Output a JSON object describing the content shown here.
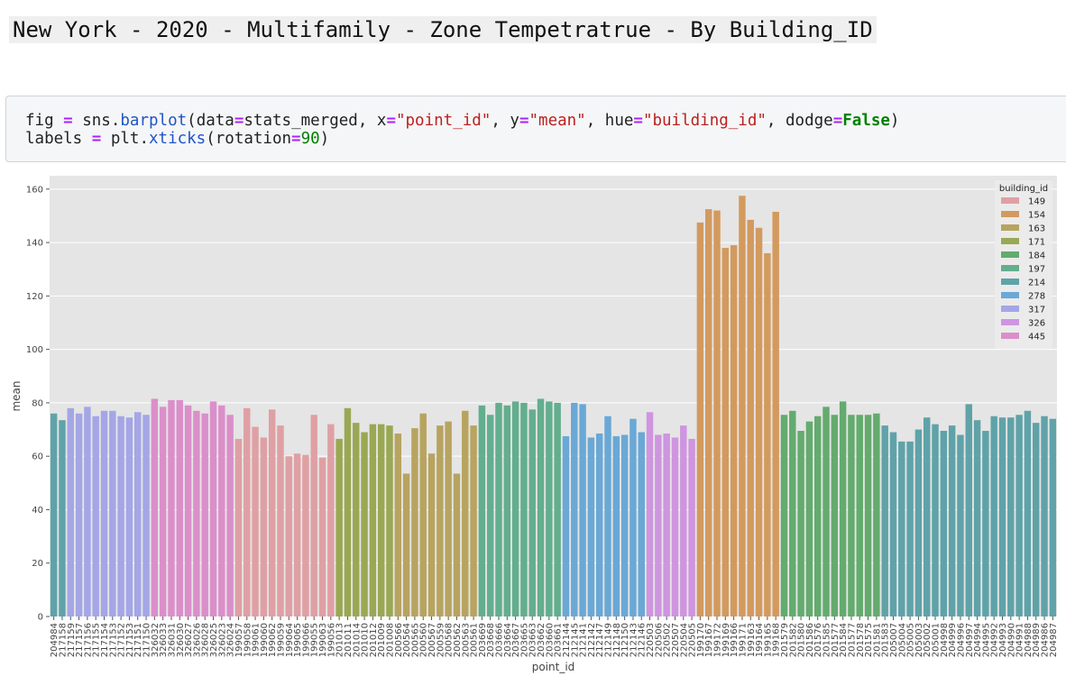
{
  "heading": "New York - 2020 - Multifamily - Zone Tempetratrue - By Building_ID",
  "code_cell": {
    "prompt": "⋮",
    "line1": [
      {
        "t": "fig ",
        "c": ""
      },
      {
        "t": "=",
        "c": "op"
      },
      {
        "t": " sns.",
        "c": ""
      },
      {
        "t": "barplot",
        "c": "fn"
      },
      {
        "t": "(data",
        "c": ""
      },
      {
        "t": "=",
        "c": "op"
      },
      {
        "t": "stats_merged, x",
        "c": ""
      },
      {
        "t": "=",
        "c": "op"
      },
      {
        "t": "\"point_id\"",
        "c": "str"
      },
      {
        "t": ", y",
        "c": ""
      },
      {
        "t": "=",
        "c": "op"
      },
      {
        "t": "\"mean\"",
        "c": "str"
      },
      {
        "t": ", hue",
        "c": ""
      },
      {
        "t": "=",
        "c": "op"
      },
      {
        "t": "\"building_id\"",
        "c": "str"
      },
      {
        "t": ", dodge",
        "c": ""
      },
      {
        "t": "=",
        "c": "op"
      },
      {
        "t": "False",
        "c": "kw"
      },
      {
        "t": ")",
        "c": ""
      }
    ],
    "line2": [
      {
        "t": "labels ",
        "c": ""
      },
      {
        "t": "=",
        "c": "op"
      },
      {
        "t": " plt.",
        "c": ""
      },
      {
        "t": "xticks",
        "c": "fn"
      },
      {
        "t": "(rotation",
        "c": ""
      },
      {
        "t": "=",
        "c": "op"
      },
      {
        "t": "90",
        "c": "num"
      },
      {
        "t": ")",
        "c": ""
      }
    ]
  },
  "chart_data": {
    "type": "bar",
    "xlabel": "point_id",
    "ylabel": "mean",
    "ylim": [
      0,
      165
    ],
    "yticks": [
      0,
      20,
      40,
      60,
      80,
      100,
      120,
      140,
      160
    ],
    "grid": true,
    "legend": {
      "title": "building_id",
      "placement": "top-right"
    },
    "groups": [
      {
        "building_id": "214",
        "color": "#5fa3a9",
        "points": [
          {
            "id": "204984",
            "mean": 76
          },
          {
            "id": "217158",
            "mean": 73.5
          }
        ]
      },
      {
        "building_id": "317",
        "color": "#a4a6e6",
        "points": [
          {
            "id": "217159",
            "mean": 78
          },
          {
            "id": "217157",
            "mean": 76
          },
          {
            "id": "217156",
            "mean": 78.5
          },
          {
            "id": "217155",
            "mean": 75
          },
          {
            "id": "217154",
            "mean": 77
          },
          {
            "id": "217153",
            "mean": 77
          },
          {
            "id": "217152",
            "mean": 75
          },
          {
            "id": "217153",
            "mean": 74.5
          },
          {
            "id": "217151",
            "mean": 76.5
          },
          {
            "id": "217150",
            "mean": 75.5
          }
        ]
      },
      {
        "building_id": "445",
        "color": "#db8fca",
        "points": [
          {
            "id": "326032",
            "mean": 81.5
          },
          {
            "id": "326033",
            "mean": 78.5
          },
          {
            "id": "326031",
            "mean": 81
          },
          {
            "id": "326030",
            "mean": 81
          },
          {
            "id": "326027",
            "mean": 79
          },
          {
            "id": "326026",
            "mean": 77
          },
          {
            "id": "326028",
            "mean": 76
          },
          {
            "id": "326025",
            "mean": 80.5
          },
          {
            "id": "326023",
            "mean": 79
          },
          {
            "id": "326024",
            "mean": 75.5
          }
        ]
      },
      {
        "building_id": "149",
        "color": "#dfa0a4",
        "points": [
          {
            "id": "199057",
            "mean": 66.5
          },
          {
            "id": "199058",
            "mean": 78
          },
          {
            "id": "199061",
            "mean": 71
          },
          {
            "id": "199060",
            "mean": 67
          },
          {
            "id": "199062",
            "mean": 77.5
          },
          {
            "id": "199059",
            "mean": 71.5
          },
          {
            "id": "199064",
            "mean": 60
          },
          {
            "id": "199065",
            "mean": 61
          },
          {
            "id": "199066",
            "mean": 60.5
          },
          {
            "id": "199055",
            "mean": 75.5
          },
          {
            "id": "199063",
            "mean": 59.5
          },
          {
            "id": "199056",
            "mean": 72
          }
        ]
      },
      {
        "building_id": "171",
        "color": "#9aa853",
        "points": [
          {
            "id": "201013",
            "mean": 66.5
          },
          {
            "id": "201011",
            "mean": 78
          },
          {
            "id": "201014",
            "mean": 72.5
          },
          {
            "id": "201010",
            "mean": 69
          },
          {
            "id": "201012",
            "mean": 72
          },
          {
            "id": "201009",
            "mean": 72
          },
          {
            "id": "201008",
            "mean": 71.5
          }
        ]
      },
      {
        "building_id": "163",
        "color": "#b7a460",
        "points": [
          {
            "id": "200566",
            "mean": 68.5
          },
          {
            "id": "200564",
            "mean": 53.5
          },
          {
            "id": "200565",
            "mean": 70.5
          },
          {
            "id": "200560",
            "mean": 76
          },
          {
            "id": "200567",
            "mean": 61
          },
          {
            "id": "200559",
            "mean": 71.5
          },
          {
            "id": "200568",
            "mean": 73
          },
          {
            "id": "200562",
            "mean": 53.5
          },
          {
            "id": "200563",
            "mean": 77
          },
          {
            "id": "200561",
            "mean": 71.5
          }
        ]
      },
      {
        "building_id": "197",
        "color": "#63ae8e",
        "points": [
          {
            "id": "203669",
            "mean": 79
          },
          {
            "id": "203668",
            "mean": 75.5
          },
          {
            "id": "203666",
            "mean": 80
          },
          {
            "id": "203664",
            "mean": 79
          },
          {
            "id": "203667",
            "mean": 80.5
          },
          {
            "id": "203665",
            "mean": 80
          },
          {
            "id": "203663",
            "mean": 77.5
          },
          {
            "id": "203662",
            "mean": 81.5
          },
          {
            "id": "203660",
            "mean": 80.5
          },
          {
            "id": "203661",
            "mean": 80
          }
        ]
      },
      {
        "building_id": "278",
        "color": "#6aa8d6",
        "points": [
          {
            "id": "212144",
            "mean": 67.5
          },
          {
            "id": "212145",
            "mean": 80
          },
          {
            "id": "212141",
            "mean": 79.5
          },
          {
            "id": "212142",
            "mean": 67
          },
          {
            "id": "212147",
            "mean": 68.5
          },
          {
            "id": "212149",
            "mean": 75
          },
          {
            "id": "212148",
            "mean": 67.5
          },
          {
            "id": "212150",
            "mean": 68
          },
          {
            "id": "212143",
            "mean": 74
          },
          {
            "id": "212146",
            "mean": 69
          }
        ]
      },
      {
        "building_id": "326",
        "color": "#cf95e0",
        "points": [
          {
            "id": "220503",
            "mean": 76.5
          },
          {
            "id": "220506",
            "mean": 68
          },
          {
            "id": "220502",
            "mean": 68.5
          },
          {
            "id": "220507",
            "mean": 67
          },
          {
            "id": "220504",
            "mean": 71.5
          },
          {
            "id": "220505",
            "mean": 66.5
          }
        ]
      },
      {
        "building_id": "154",
        "color": "#d39a5e",
        "points": [
          {
            "id": "199170",
            "mean": 147.5
          },
          {
            "id": "199167",
            "mean": 152.5
          },
          {
            "id": "199172",
            "mean": 152
          },
          {
            "id": "199169",
            "mean": 138
          },
          {
            "id": "199166",
            "mean": 139
          },
          {
            "id": "199171",
            "mean": 157.5
          },
          {
            "id": "199163",
            "mean": 148.5
          },
          {
            "id": "199164",
            "mean": 145.5
          },
          {
            "id": "199165",
            "mean": 136
          },
          {
            "id": "199168",
            "mean": 151.5
          }
        ]
      },
      {
        "building_id": "184",
        "color": "#64ab6e",
        "points": [
          {
            "id": "201579",
            "mean": 75.5
          },
          {
            "id": "201582",
            "mean": 77
          },
          {
            "id": "201580",
            "mean": 69.5
          },
          {
            "id": "201586",
            "mean": 73
          },
          {
            "id": "201576",
            "mean": 75
          },
          {
            "id": "201585",
            "mean": 78.5
          },
          {
            "id": "201577",
            "mean": 75.5
          },
          {
            "id": "201584",
            "mean": 80.5
          },
          {
            "id": "201577",
            "mean": 75.5
          },
          {
            "id": "201578",
            "mean": 75.5
          },
          {
            "id": "201575",
            "mean": 75.5
          },
          {
            "id": "201581",
            "mean": 76
          }
        ]
      },
      {
        "building_id": "214",
        "color": "#5fa3a9",
        "points": [
          {
            "id": "201583",
            "mean": 71.5
          },
          {
            "id": "205007",
            "mean": 69
          },
          {
            "id": "205004",
            "mean": 65.5
          },
          {
            "id": "205005",
            "mean": 65.5
          },
          {
            "id": "205003",
            "mean": 70
          },
          {
            "id": "205002",
            "mean": 74.5
          },
          {
            "id": "205001",
            "mean": 72
          },
          {
            "id": "204998",
            "mean": 69.5
          },
          {
            "id": "204999",
            "mean": 71.5
          },
          {
            "id": "204996",
            "mean": 68
          },
          {
            "id": "204997",
            "mean": 79.5
          },
          {
            "id": "204994",
            "mean": 73.5
          },
          {
            "id": "204995",
            "mean": 69.5
          },
          {
            "id": "204992",
            "mean": 75
          },
          {
            "id": "204993",
            "mean": 74.5
          },
          {
            "id": "204990",
            "mean": 74.5
          },
          {
            "id": "204991",
            "mean": 75.5
          },
          {
            "id": "204988",
            "mean": 77
          },
          {
            "id": "204989",
            "mean": 72.5
          },
          {
            "id": "204986",
            "mean": 75
          },
          {
            "id": "204987",
            "mean": 74
          }
        ]
      }
    ],
    "legend_entries": [
      {
        "label": "149",
        "color": "#dfa0a4"
      },
      {
        "label": "154",
        "color": "#d39a5e"
      },
      {
        "label": "163",
        "color": "#b7a460"
      },
      {
        "label": "171",
        "color": "#9aa853"
      },
      {
        "label": "184",
        "color": "#64ab6e"
      },
      {
        "label": "197",
        "color": "#63ae8e"
      },
      {
        "label": "214",
        "color": "#5fa3a9"
      },
      {
        "label": "278",
        "color": "#6aa8d6"
      },
      {
        "label": "317",
        "color": "#a4a6e6"
      },
      {
        "label": "326",
        "color": "#cf95e0"
      },
      {
        "label": "445",
        "color": "#db8fca"
      }
    ]
  }
}
